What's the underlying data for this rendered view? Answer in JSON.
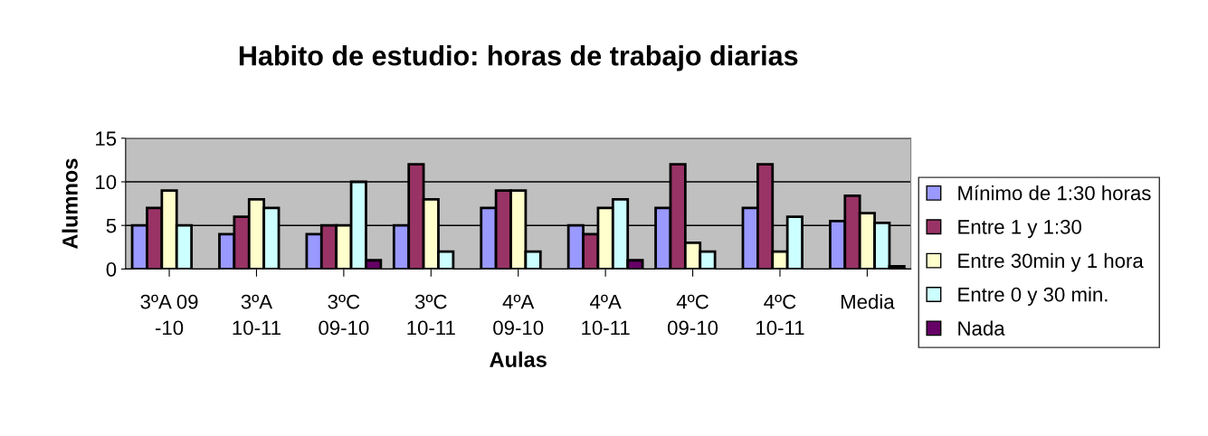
{
  "chart_data": {
    "type": "bar",
    "title": "Habito de estudio: horas de trabajo diarias",
    "xlabel": "Aulas",
    "ylabel": "Alumnos",
    "categories": [
      "3ºA 09\n-10",
      "3ºA\n10-11",
      "3ºC\n09-10",
      "3ºC\n10-11",
      "4ºA\n09-10",
      "4ºA\n10-11",
      "4ºC\n09-10",
      "4ºC\n10-11",
      "Media"
    ],
    "series": [
      {
        "name": "Mínimo de 1:30 horas",
        "color": "#9999ff",
        "values": [
          5,
          4,
          4,
          5,
          7,
          5,
          7,
          7,
          5.5
        ]
      },
      {
        "name": "Entre 1 y 1:30",
        "color": "#993366",
        "values": [
          7,
          6,
          5,
          12,
          9,
          4,
          12,
          12,
          8.4
        ]
      },
      {
        "name": "Entre 30min y 1 hora",
        "color": "#ffffcc",
        "values": [
          9,
          8,
          5,
          8,
          9,
          7,
          3,
          2,
          6.4
        ]
      },
      {
        "name": "Entre 0 y 30 min.",
        "color": "#ccffff",
        "values": [
          5,
          7,
          10,
          2,
          2,
          8,
          2,
          6,
          5.3
        ]
      },
      {
        "name": "Nada",
        "color": "#660066",
        "values": [
          0,
          0,
          1,
          0,
          0,
          1,
          0,
          0,
          0.3
        ]
      }
    ],
    "ylim": [
      0,
      15
    ],
    "yticks": [
      0,
      5,
      10,
      15
    ],
    "grid": "y",
    "legend": "right"
  }
}
